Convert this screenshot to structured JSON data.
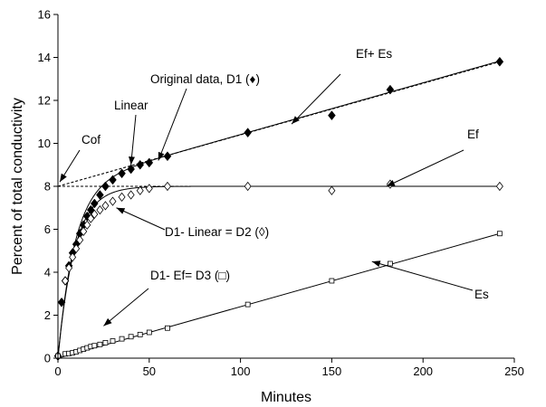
{
  "chart_data": {
    "type": "scatter",
    "title": "",
    "xlabel": "Minutes",
    "ylabel": "Percent of total conductivity",
    "xlim": [
      0,
      250
    ],
    "ylim": [
      0,
      16
    ],
    "xticks": [
      0,
      50,
      100,
      150,
      200,
      250
    ],
    "yticks": [
      0,
      2,
      4,
      6,
      8,
      10,
      12,
      14,
      16
    ],
    "grid": false,
    "legend": "none",
    "series": [
      {
        "marker": "filled-diamond",
        "x": [
          0,
          2,
          4,
          6,
          8,
          10,
          12,
          14,
          16,
          18,
          20,
          23,
          26,
          30,
          35,
          40,
          45,
          50,
          60,
          104,
          150,
          182,
          242
        ],
        "y": [
          0.1,
          2.6,
          3.6,
          4.3,
          4.9,
          5.3,
          5.8,
          6.2,
          6.6,
          6.9,
          7.2,
          7.6,
          8.0,
          8.3,
          8.6,
          8.8,
          9.0,
          9.1,
          9.4,
          10.5,
          11.3,
          12.5,
          13.8
        ]
      },
      {
        "marker": "open-diamond",
        "x": [
          0,
          4,
          6,
          8,
          10,
          12,
          14,
          16,
          18,
          20,
          23,
          26,
          30,
          35,
          40,
          45,
          50,
          60,
          104,
          150,
          182,
          242
        ],
        "y": [
          0.1,
          3.6,
          4.2,
          4.7,
          5.1,
          5.5,
          5.9,
          6.2,
          6.5,
          6.7,
          6.9,
          7.1,
          7.3,
          7.5,
          7.6,
          7.8,
          7.9,
          8.0,
          8.0,
          7.8,
          8.1,
          8.0
        ]
      },
      {
        "marker": "open-square",
        "x": [
          0,
          4,
          6,
          8,
          10,
          12,
          14,
          16,
          18,
          20,
          23,
          26,
          30,
          35,
          40,
          45,
          50,
          60,
          104,
          150,
          182,
          242
        ],
        "y": [
          0.1,
          0.2,
          0.22,
          0.25,
          0.3,
          0.36,
          0.42,
          0.48,
          0.54,
          0.58,
          0.64,
          0.72,
          0.8,
          0.9,
          1.0,
          1.1,
          1.2,
          1.4,
          2.5,
          3.6,
          4.4,
          5.8
        ]
      }
    ],
    "lines": [
      {
        "style": "solid",
        "fit": "exponential-plus-linear",
        "Ef": 8.0,
        "k": 0.11,
        "slope": 0.0241
      },
      {
        "style": "dashed",
        "fit": "linear",
        "x": [
          0,
          242
        ],
        "y": [
          8.0,
          13.8
        ]
      },
      {
        "style": "solid",
        "fit": "exponential",
        "Ef": 8.0,
        "k": 0.11
      },
      {
        "style": "dashed",
        "fit": "constant",
        "x": [
          0,
          242
        ],
        "y": [
          8.0,
          8.0
        ]
      },
      {
        "style": "solid",
        "fit": "linear",
        "x": [
          0,
          242
        ],
        "y": [
          0.0,
          5.8
        ]
      }
    ],
    "annotations": [
      {
        "text": "Original data, D1 (♦)",
        "target": [
          55,
          9.2
        ]
      },
      {
        "text": "Ef+ Es",
        "target": [
          128,
          10.9
        ]
      },
      {
        "text": "Linear",
        "target": [
          40,
          9.0
        ]
      },
      {
        "text": "Cof",
        "target": [
          1,
          8.2
        ]
      },
      {
        "text": "Ef",
        "target": [
          180,
          8.0
        ]
      },
      {
        "text": "D1- Linear = D2 (◊)",
        "target": [
          32,
          7.0
        ]
      },
      {
        "text": "D1- Ef= D3 (□)",
        "target": [
          25,
          1.5
        ]
      },
      {
        "text": "Es",
        "target": [
          172,
          4.5
        ]
      }
    ]
  }
}
